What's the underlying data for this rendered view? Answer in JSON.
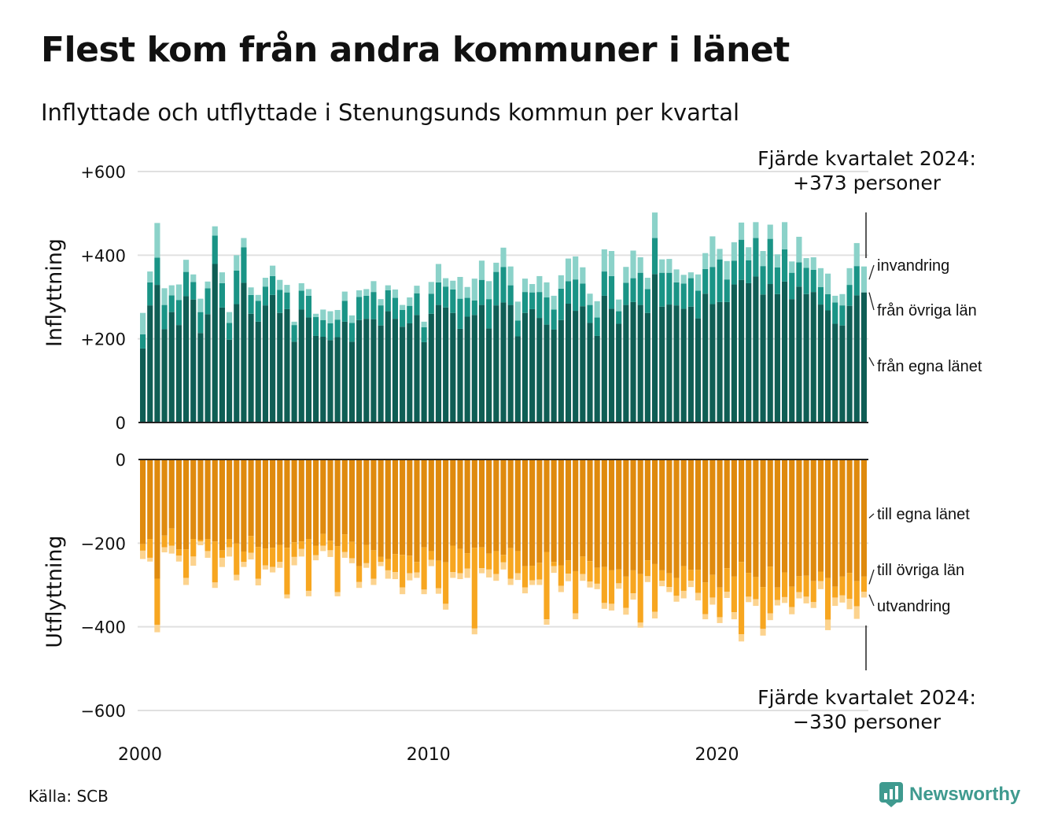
{
  "title": "Flest kom från andra kommuner i länet",
  "subtitle": "Inflyttade och utflyttade i Stenungsunds kommun per kvartal",
  "source": "Källa: SCB",
  "brand": {
    "name": "Newsworthy",
    "icon": "newsworthy-logo-icon"
  },
  "colors": {
    "in_lan": "#0f5e55",
    "in_ovriga": "#1a9486",
    "in_invandring": "#8bd2c9",
    "out_lan": "#df8a0e",
    "out_ovriga": "#f7a620",
    "out_utvandring": "#fcd38e",
    "grid": "#e0e0e0",
    "axis": "#222222"
  },
  "chart_data": [
    {
      "type": "bar",
      "stacked": true,
      "ylabel": "Inflyttning",
      "ylim": [
        0,
        600
      ],
      "yticks": [
        {
          "value": 0,
          "label": "0"
        },
        {
          "value": 200,
          "label": "+200"
        },
        {
          "value": 400,
          "label": "+400"
        },
        {
          "value": 600,
          "label": "+600"
        }
      ],
      "grid": true,
      "annotation": {
        "line1": "Fjärde kvartalet 2024:",
        "line2": "+373 personer"
      },
      "series": [
        {
          "name": "från egna länet",
          "key": "in_lan",
          "values": [
            177,
            280,
            329,
            223,
            264,
            233,
            302,
            294,
            214,
            259,
            379,
            275,
            198,
            283,
            334,
            260,
            241,
            280,
            305,
            262,
            271,
            193,
            270,
            251,
            207,
            205,
            197,
            204,
            241,
            193,
            245,
            248,
            247,
            232,
            266,
            248,
            229,
            237,
            257,
            192,
            260,
            281,
            275,
            262,
            224,
            253,
            257,
            281,
            225,
            280,
            287,
            281,
            206,
            262,
            271,
            250,
            234,
            222,
            245,
            284,
            267,
            278,
            238,
            207,
            303,
            272,
            236,
            281,
            288,
            281,
            262,
            355,
            277,
            282,
            280,
            272,
            277,
            249,
            308,
            283,
            288,
            288,
            330,
            341,
            333,
            349,
            306,
            331,
            307,
            337,
            295,
            325,
            307,
            312,
            282,
            268,
            236,
            232,
            279,
            304,
            311
          ]
        },
        {
          "name": "från övriga län",
          "key": "in_ovriga",
          "values": [
            34,
            55,
            65,
            58,
            40,
            60,
            58,
            42,
            50,
            62,
            68,
            58,
            40,
            80,
            85,
            45,
            50,
            45,
            45,
            55,
            40,
            40,
            45,
            52,
            45,
            40,
            40,
            42,
            50,
            45,
            55,
            55,
            65,
            48,
            50,
            50,
            40,
            42,
            52,
            36,
            48,
            54,
            50,
            56,
            72,
            45,
            35,
            60,
            70,
            80,
            85,
            47,
            38,
            50,
            40,
            62,
            65,
            48,
            75,
            54,
            75,
            54,
            43,
            44,
            58,
            78,
            30,
            53,
            57,
            77,
            57,
            86,
            81,
            76,
            55,
            60,
            68,
            66,
            59,
            89,
            102,
            54,
            57,
            96,
            55,
            92,
            68,
            108,
            64,
            77,
            63,
            58,
            63,
            53,
            42,
            39,
            51,
            48,
            50,
            70,
            0
          ]
        },
        {
          "name": "invandring",
          "key": "in_invandring",
          "values": [
            51,
            26,
            83,
            40,
            24,
            37,
            29,
            18,
            32,
            16,
            22,
            26,
            26,
            37,
            22,
            18,
            14,
            21,
            25,
            24,
            18,
            8,
            18,
            16,
            8,
            25,
            29,
            23,
            22,
            18,
            16,
            16,
            26,
            15,
            12,
            20,
            12,
            20,
            18,
            13,
            28,
            44,
            20,
            21,
            52,
            26,
            52,
            46,
            43,
            22,
            46,
            45,
            45,
            32,
            20,
            38,
            36,
            33,
            32,
            54,
            55,
            39,
            27,
            39,
            53,
            60,
            28,
            38,
            66,
            37,
            27,
            61,
            32,
            33,
            31,
            21,
            14,
            39,
            38,
            73,
            25,
            44,
            44,
            41,
            31,
            38,
            36,
            34,
            31,
            65,
            27,
            61,
            23,
            30,
            45,
            49,
            16,
            27,
            40,
            55,
            62
          ]
        }
      ]
    },
    {
      "type": "bar",
      "stacked": true,
      "ylabel": "Utflyttning",
      "ylim": [
        -600,
        0
      ],
      "yticks": [
        {
          "value": 0,
          "label": "0"
        },
        {
          "value": -200,
          "label": "−200"
        },
        {
          "value": -400,
          "label": "−400"
        },
        {
          "value": -600,
          "label": "−600"
        }
      ],
      "grid": true,
      "annotation": {
        "line1": "Fjärde kvartalet 2024:",
        "line2": "−330 personer"
      },
      "series": [
        {
          "name": "till egna länet",
          "key": "out_lan",
          "values": [
            -202,
            -190,
            -285,
            -182,
            -165,
            -215,
            -215,
            -190,
            -192,
            -190,
            -196,
            -217,
            -190,
            -201,
            -220,
            -183,
            -209,
            -213,
            -211,
            -204,
            -211,
            -198,
            -196,
            -190,
            -206,
            -178,
            -194,
            -207,
            -179,
            -197,
            -255,
            -204,
            -217,
            -233,
            -238,
            -226,
            -228,
            -230,
            -245,
            -210,
            -219,
            -242,
            -246,
            -206,
            -214,
            -224,
            -211,
            -210,
            -225,
            -219,
            -228,
            -212,
            -219,
            -255,
            -254,
            -247,
            -221,
            -245,
            -253,
            -241,
            -267,
            -232,
            -243,
            -259,
            -257,
            -265,
            -263,
            -280,
            -265,
            -274,
            -241,
            -250,
            -265,
            -272,
            -283,
            -255,
            -264,
            -264,
            -294,
            -276,
            -306,
            -260,
            -280,
            -245,
            -271,
            -281,
            -305,
            -256,
            -306,
            -270,
            -304,
            -279,
            -278,
            -291,
            -268,
            -283,
            -304,
            -280,
            -271,
            -291,
            -280
          ]
        },
        {
          "name": "till övriga län",
          "key": "out_ovriga",
          "values": [
            -16,
            -45,
            -110,
            -28,
            -41,
            -15,
            -68,
            -42,
            -4,
            -29,
            -98,
            -18,
            -20,
            -75,
            -25,
            -40,
            -76,
            -40,
            -46,
            -41,
            -112,
            -35,
            -18,
            -124,
            -23,
            -28,
            -23,
            -110,
            -42,
            -39,
            -38,
            -44,
            -68,
            -12,
            -27,
            -43,
            -78,
            -42,
            -25,
            -101,
            -21,
            -66,
            -99,
            -63,
            -58,
            -37,
            -193,
            -50,
            -38,
            -55,
            -18,
            -73,
            -53,
            -51,
            -35,
            -40,
            -161,
            -10,
            -49,
            -32,
            -101,
            -42,
            -49,
            -38,
            -86,
            -80,
            -33,
            -75,
            -55,
            -116,
            -38,
            -114,
            -25,
            -33,
            -43,
            -59,
            -26,
            -55,
            -76,
            -54,
            -71,
            -56,
            -85,
            -173,
            -57,
            -53,
            -100,
            -112,
            -30,
            -59,
            -49,
            -38,
            -50,
            -50,
            -23,
            -100,
            -26,
            -45,
            -62,
            -60,
            -36
          ]
        },
        {
          "name": "utvandring",
          "key": "out_utvandring",
          "values": [
            -20,
            -9,
            -18,
            -12,
            -19,
            -14,
            -17,
            -22,
            -9,
            -16,
            -13,
            -22,
            -22,
            -13,
            -12,
            -16,
            -16,
            -10,
            -13,
            -14,
            -9,
            -20,
            -18,
            -13,
            -12,
            -13,
            -16,
            -10,
            -14,
            -12,
            -14,
            -11,
            -15,
            -10,
            -20,
            -17,
            -16,
            -17,
            -13,
            -11,
            -15,
            -13,
            -14,
            -14,
            -14,
            -22,
            -14,
            -12,
            -19,
            -16,
            -17,
            -15,
            -16,
            -14,
            -11,
            -13,
            -13,
            -16,
            -15,
            -18,
            -14,
            -16,
            -14,
            -13,
            -14,
            -16,
            -13,
            -16,
            -15,
            -12,
            -14,
            -16,
            -13,
            -12,
            -14,
            -18,
            -15,
            -18,
            -12,
            -17,
            -14,
            -15,
            -17,
            -17,
            -13,
            -16,
            -16,
            -16,
            -13,
            -14,
            -17,
            -15,
            -16,
            -14,
            -19,
            -25,
            -20,
            -17,
            -25,
            -30,
            -14
          ]
        }
      ]
    }
  ],
  "x_axis": {
    "start_year": 2000,
    "quarters": 101,
    "ticks": [
      {
        "year": 2000,
        "label": "2000"
      },
      {
        "year": 2010,
        "label": "2010"
      },
      {
        "year": 2020,
        "label": "2020"
      }
    ]
  }
}
